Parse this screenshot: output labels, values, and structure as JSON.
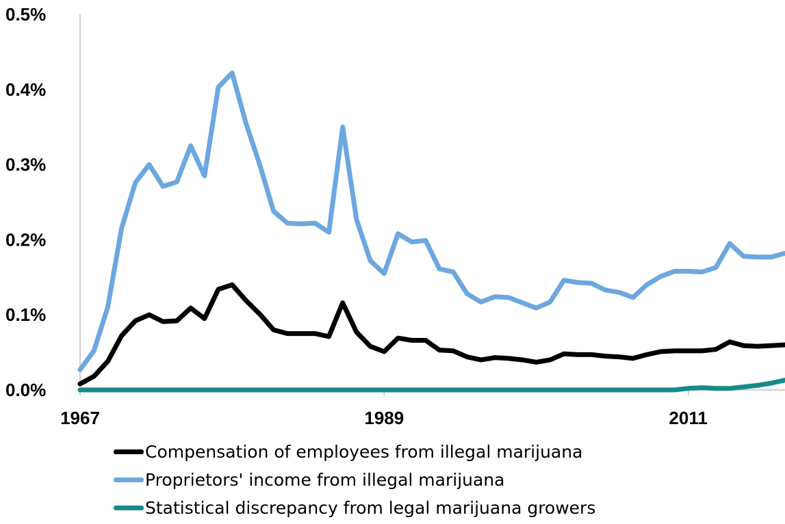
{
  "chart_data": {
    "type": "line",
    "x": [
      1967,
      1968,
      1969,
      1970,
      1971,
      1972,
      1973,
      1974,
      1975,
      1976,
      1977,
      1978,
      1979,
      1980,
      1981,
      1982,
      1983,
      1984,
      1985,
      1986,
      1987,
      1988,
      1989,
      1990,
      1991,
      1992,
      1993,
      1994,
      1995,
      1996,
      1997,
      1998,
      1999,
      2000,
      2001,
      2002,
      2003,
      2004,
      2005,
      2006,
      2007,
      2008,
      2009,
      2010,
      2011,
      2012,
      2013,
      2014,
      2015,
      2016,
      2017,
      2018
    ],
    "xticks": [
      "1967",
      "1989",
      "2011"
    ],
    "xtick_values": [
      1967,
      1989,
      2011
    ],
    "yticks": [
      "0.0%",
      "0.1%",
      "0.2%",
      "0.3%",
      "0.4%",
      "0.5%"
    ],
    "ytick_values": [
      0,
      0.1,
      0.2,
      0.3,
      0.4,
      0.5
    ],
    "ylim": [
      0,
      0.5
    ],
    "xlim": [
      1967,
      2018
    ],
    "grid": false,
    "legend_position": "bottom",
    "series": [
      {
        "name": "Compensation of employees from illegal marijuana",
        "color": "#000000",
        "values": [
          0.008,
          0.018,
          0.038,
          0.072,
          0.092,
          0.1,
          0.091,
          0.092,
          0.109,
          0.095,
          0.134,
          0.14,
          0.119,
          0.101,
          0.08,
          0.075,
          0.075,
          0.075,
          0.071,
          0.116,
          0.077,
          0.058,
          0.051,
          0.069,
          0.066,
          0.066,
          0.053,
          0.052,
          0.044,
          0.04,
          0.043,
          0.042,
          0.04,
          0.037,
          0.04,
          0.048,
          0.047,
          0.047,
          0.045,
          0.044,
          0.042,
          0.047,
          0.051,
          0.052,
          0.052,
          0.052,
          0.054,
          0.064,
          0.059,
          0.058,
          0.059,
          0.06
        ]
      },
      {
        "name": "Proprietors' income from illegal marijuana",
        "color": "#6ca7e0",
        "values": [
          0.027,
          0.052,
          0.11,
          0.215,
          0.276,
          0.3,
          0.271,
          0.277,
          0.325,
          0.285,
          0.403,
          0.422,
          0.355,
          0.3,
          0.238,
          0.222,
          0.221,
          0.222,
          0.21,
          0.35,
          0.227,
          0.172,
          0.155,
          0.208,
          0.197,
          0.199,
          0.161,
          0.157,
          0.128,
          0.117,
          0.124,
          0.123,
          0.116,
          0.109,
          0.117,
          0.146,
          0.143,
          0.142,
          0.133,
          0.13,
          0.123,
          0.14,
          0.151,
          0.158,
          0.158,
          0.157,
          0.163,
          0.195,
          0.178,
          0.177,
          0.177,
          0.182
        ]
      },
      {
        "name": "Statistical discrepancy from legal marijuana growers",
        "color": "#178a8a",
        "values": [
          0,
          0,
          0,
          0,
          0,
          0,
          0,
          0,
          0,
          0,
          0,
          0,
          0,
          0,
          0,
          0,
          0,
          0,
          0,
          0,
          0,
          0,
          0,
          0,
          0,
          0,
          0,
          0,
          0,
          0,
          0,
          0,
          0,
          0,
          0,
          0,
          0,
          0,
          0,
          0,
          0,
          0,
          0,
          0,
          0.002,
          0.003,
          0.002,
          0.002,
          0.004,
          0.006,
          0.009,
          0.013
        ]
      }
    ]
  }
}
